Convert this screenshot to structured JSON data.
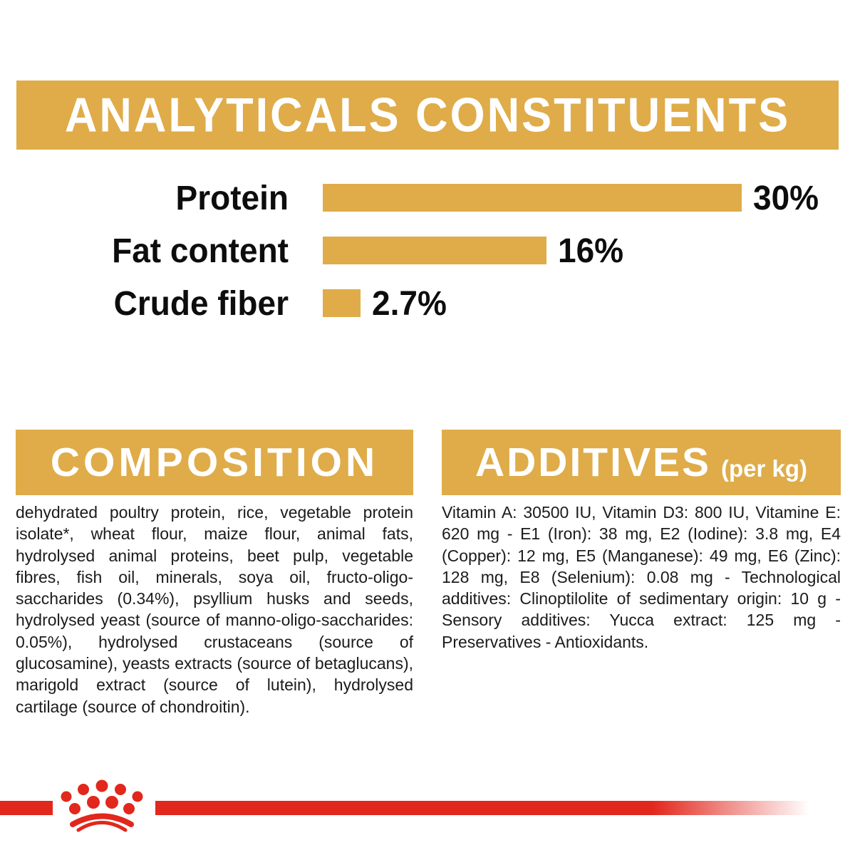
{
  "colors": {
    "gold": "#DFAC49",
    "red": "#E2271C",
    "heading_text": "#FFFFFF",
    "body_text": "#1B1B1B"
  },
  "analyticals_banner": {
    "title": "ANALYTICALS CONSTITUENTS"
  },
  "chart_data": {
    "type": "bar",
    "orientation": "horizontal",
    "title": "ANALYTICALS CONSTITUENTS",
    "categories": [
      "Protein",
      "Fat content",
      "Crude fiber"
    ],
    "values": [
      30,
      16,
      2.7
    ],
    "value_labels": [
      "30%",
      "16%",
      "2.7%"
    ],
    "unit": "%",
    "scale_max": 30,
    "bar_color": "#DFAC49",
    "grid": false,
    "legend": "none"
  },
  "composition": {
    "title": "COMPOSITION",
    "body": "dehydrated poultry protein, rice, vegetable protein isolate*, wheat flour, maize flour, animal fats, hydrolysed animal proteins, beet pulp, vegetable fibres, fish oil, minerals, soya oil, fructo-oligo-saccharides (0.34%), psyllium husks and seeds, hydrolysed yeast (source of manno-oligo-saccharides: 0.05%), hydrolysed crustaceans (source of glucosamine), yeasts extracts (source of betaglucans), marigold extract (source of lutein), hydrolysed cartilage (source of chondroitin)."
  },
  "additives": {
    "title": "ADDITIVES",
    "suffix": "(per kg)",
    "body": "Vitamin A: 30500 IU, Vitamin D3: 800 IU, Vitamine E: 620 mg - E1 (Iron): 38 mg, E2 (Iodine): 3.8 mg, E4 (Copper): 12 mg, E5 (Manganese): 49 mg, E6 (Zinc): 128 mg, E8 (Selenium): 0.08 mg - Technological additives: Clinoptilolite of sedimentary origin: 10 g - Sensory additives: Yucca extract: 125 mg - Preservatives - Antioxidants."
  },
  "footer": {
    "brand_logo": "royal-canin-crown"
  }
}
